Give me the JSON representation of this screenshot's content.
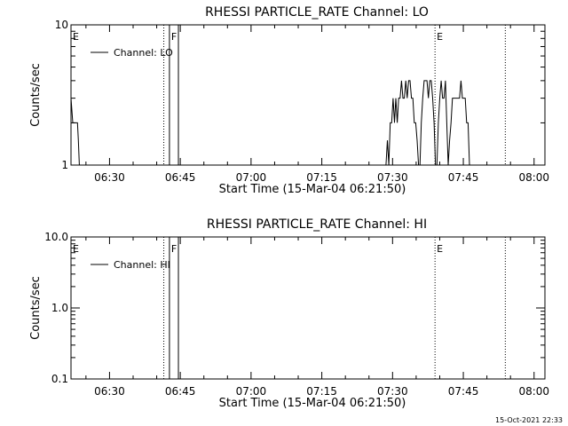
{
  "chart_data": [
    {
      "type": "line",
      "title": "RHESSI PARTICLE_RATE Channel: LO",
      "xlabel": "Start Time (15-Mar-04 06:21:50)",
      "ylabel": "Counts/sec",
      "x_tick_labels": [
        "06:30",
        "06:45",
        "07:00",
        "07:15",
        "07:30",
        "07:45",
        "08:00"
      ],
      "x_tick_minutes": [
        390,
        405,
        420,
        435,
        450,
        465,
        480
      ],
      "xlim_minutes": [
        381.83,
        482.3
      ],
      "y_scale": "log",
      "ylim": [
        1,
        10
      ],
      "y_tick_labels": [
        "1",
        "10"
      ],
      "y_tick_values": [
        1,
        10
      ],
      "legend": {
        "entries": [
          "Channel: LO"
        ],
        "placement": "top-left"
      },
      "markers": [
        {
          "label": "E",
          "minute": 381.83,
          "style": "none"
        },
        {
          "label": "",
          "minute": 401.5,
          "style": "dotted"
        },
        {
          "label": "F",
          "minute": 402.7,
          "style": "solid"
        },
        {
          "label": "",
          "minute": 404.6,
          "style": "solid"
        },
        {
          "label": "E",
          "minute": 459.0,
          "style": "dotted"
        },
        {
          "label": "",
          "minute": 473.9,
          "style": "dotted"
        }
      ],
      "series": [
        {
          "x": [
            381.83,
            382.2,
            382.6,
            382.9,
            383.2,
            383.4,
            383.6,
            383.9,
            384.2,
            384.5,
            448.6,
            448.9,
            449.2,
            449.5,
            449.8,
            450.1,
            450.4,
            450.7,
            451.0,
            451.3,
            451.6,
            451.9,
            452.2,
            452.5,
            452.8,
            453.1,
            453.4,
            453.7,
            454.0,
            454.3,
            454.6,
            454.9,
            455.2,
            455.5,
            455.8,
            456.1,
            456.4,
            456.7,
            457.0,
            457.3,
            457.6,
            457.9,
            458.2,
            458.5,
            458.8,
            459.1,
            459.4,
            459.7,
            460.0,
            460.3,
            460.6,
            460.9,
            461.2,
            461.5,
            461.8,
            462.1,
            462.4,
            462.7,
            463.0,
            463.3,
            463.6,
            463.9,
            464.2,
            464.5,
            464.8,
            465.1,
            465.4,
            465.7,
            466.0,
            466.3,
            466.6,
            467.0,
            467.3,
            467.6,
            467.9,
            468.2,
            468.5,
            468.8,
            469.1,
            469.4,
            469.7,
            470.0,
            470.5
          ],
          "y": [
            3,
            2,
            2,
            2,
            2,
            1.5,
            1,
            1,
            1,
            1,
            1,
            1.5,
            1,
            2,
            2,
            3,
            2,
            3,
            2,
            3,
            3,
            4,
            3,
            3,
            4,
            3,
            4,
            4,
            3,
            3,
            2,
            2,
            1.5,
            1,
            1,
            2,
            3,
            4,
            4,
            4,
            3,
            4,
            4,
            3,
            2,
            1,
            1,
            2,
            3,
            4,
            3,
            3,
            4,
            2,
            1,
            1.5,
            2,
            3,
            3,
            3,
            3,
            3,
            3,
            4,
            3,
            3,
            3,
            2,
            2,
            1,
            1,
            1,
            1,
            1,
            1,
            1,
            1,
            1,
            1,
            1,
            1,
            1,
            1
          ]
        }
      ]
    },
    {
      "type": "line",
      "title": "RHESSI PARTICLE_RATE Channel: HI",
      "xlabel": "Start Time (15-Mar-04 06:21:50)",
      "ylabel": "Counts/sec",
      "x_tick_labels": [
        "06:30",
        "06:45",
        "07:00",
        "07:15",
        "07:30",
        "07:45",
        "08:00"
      ],
      "x_tick_minutes": [
        390,
        405,
        420,
        435,
        450,
        465,
        480
      ],
      "xlim_minutes": [
        381.83,
        482.3
      ],
      "y_scale": "log",
      "ylim": [
        0.1,
        10
      ],
      "y_tick_labels": [
        "0.1",
        "1.0",
        "10.0"
      ],
      "y_tick_values": [
        0.1,
        1,
        10
      ],
      "legend": {
        "entries": [
          "Channel: HI"
        ],
        "placement": "top-left"
      },
      "markers": [
        {
          "label": "E",
          "minute": 381.83,
          "style": "none"
        },
        {
          "label": "",
          "minute": 401.5,
          "style": "dotted"
        },
        {
          "label": "F",
          "minute": 402.7,
          "style": "solid"
        },
        {
          "label": "",
          "minute": 404.6,
          "style": "solid"
        },
        {
          "label": "E",
          "minute": 459.0,
          "style": "dotted"
        },
        {
          "label": "",
          "minute": 473.9,
          "style": "dotted"
        }
      ],
      "series": [
        {
          "x": [],
          "y": []
        }
      ]
    }
  ],
  "timestamp": "15-Oct-2021 22:33"
}
